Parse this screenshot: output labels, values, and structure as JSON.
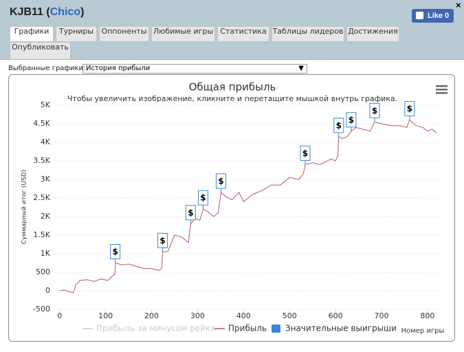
{
  "header": {
    "title": {
      "name": "KJB11 (",
      "player": "Chico",
      "close": ")"
    },
    "like_button": "Like",
    "like_count": 0,
    "close_button": "×"
  },
  "tabs": [
    "Графики",
    "Турниры",
    "Оппоненты",
    "Любимые игры",
    "Статистика",
    "Таблицы лидеров",
    "Достижения",
    "Опубликовать"
  ],
  "active_tab": 0,
  "selector": {
    "label": "Выбранные графики:",
    "value": "История прибыли",
    "arrow": "▼"
  },
  "chart_data": {
    "type": "line",
    "title": "Общая прибыль",
    "subtitle": "Чтобы увеличить изображение, кликните и перетащите мышкой внутрь графика.",
    "x_label": "Номер игры",
    "y_label": "Суммарный итог (USD)",
    "xlim": [
      -10,
      827
    ],
    "ylim": [
      -500,
      5000
    ],
    "xticks": [
      0,
      100,
      200,
      300,
      400,
      500,
      600,
      700,
      800
    ],
    "yticks": [
      {
        "value": 5000,
        "label": "5K"
      },
      {
        "value": 4500,
        "label": "4.5K"
      },
      {
        "value": 4000,
        "label": "4K"
      },
      {
        "value": 3500,
        "label": "3.5K"
      },
      {
        "value": 3000,
        "label": "3K"
      },
      {
        "value": 2500,
        "label": "2.5K"
      },
      {
        "value": 2000,
        "label": "2K"
      },
      {
        "value": 1500,
        "label": "1.5K"
      },
      {
        "value": 1000,
        "label": "1K"
      },
      500,
      0,
      -500
    ],
    "grid": true,
    "series": [
      {
        "name": "Прибыль за минусом рейка",
        "color": "#cccccc",
        "visible": false,
        "x": [],
        "values": []
      },
      {
        "name": "Прибыль",
        "color": "#b9585a",
        "x": [
          0,
          10,
          20,
          30,
          35,
          45,
          60,
          75,
          90,
          105,
          115,
          120,
          122,
          135,
          150,
          170,
          185,
          200,
          215,
          222,
          224,
          235,
          250,
          265,
          280,
          285,
          295,
          305,
          312,
          320,
          335,
          345,
          351,
          360,
          375,
          390,
          400,
          420,
          440,
          460,
          480,
          500,
          520,
          530,
          534,
          550,
          565,
          575,
          590,
          600,
          605,
          607,
          615,
          625,
          634,
          645,
          660,
          675,
          685,
          700,
          720,
          740,
          755,
          761,
          775,
          790,
          800,
          810,
          820
        ],
        "values": [
          0,
          20,
          -20,
          -50,
          150,
          280,
          300,
          250,
          320,
          280,
          400,
          450,
          750,
          700,
          720,
          650,
          600,
          600,
          550,
          600,
          1050,
          1050,
          1500,
          1450,
          1300,
          1800,
          1950,
          1900,
          2200,
          2150,
          2000,
          2100,
          2650,
          2550,
          2450,
          2650,
          2400,
          2600,
          2700,
          2850,
          2850,
          3050,
          3000,
          3150,
          3400,
          3450,
          3400,
          3450,
          3550,
          3500,
          3650,
          4150,
          4100,
          4150,
          4300,
          4400,
          4350,
          4300,
          4550,
          4500,
          4450,
          4450,
          4400,
          4600,
          4450,
          4400,
          4300,
          4350,
          4250
        ]
      },
      {
        "name": "Значительные выигрыши",
        "color": "#3d85d8",
        "type": "flags",
        "flag_label": "$",
        "x": [
          121,
          224,
          285,
          312,
          351,
          534,
          607,
          634,
          685,
          761
        ],
        "values": [
          750,
          1050,
          1800,
          2200,
          2650,
          3400,
          4150,
          4300,
          4550,
          4600
        ]
      }
    ]
  }
}
